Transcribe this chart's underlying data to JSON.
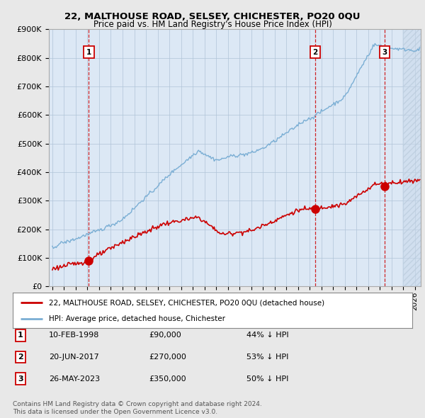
{
  "title": "22, MALTHOUSE ROAD, SELSEY, CHICHESTER, PO20 0QU",
  "subtitle": "Price paid vs. HM Land Registry's House Price Index (HPI)",
  "background_color": "#e8e8e8",
  "plot_background": "#dce8f5",
  "plot_background_hatch": "#c8d8e8",
  "sale_dates_numeric": [
    1998.12,
    2017.47,
    2023.4
  ],
  "sale_prices": [
    90000,
    270000,
    350000
  ],
  "sale_labels": [
    "1",
    "2",
    "3"
  ],
  "legend_entries": [
    "22, MALTHOUSE ROAD, SELSEY, CHICHESTER, PO20 0QU (detached house)",
    "HPI: Average price, detached house, Chichester"
  ],
  "table_rows": [
    [
      "1",
      "10-FEB-1998",
      "£90,000",
      "44% ↓ HPI"
    ],
    [
      "2",
      "20-JUN-2017",
      "£270,000",
      "53% ↓ HPI"
    ],
    [
      "3",
      "26-MAY-2023",
      "£350,000",
      "50% ↓ HPI"
    ]
  ],
  "footer": "Contains HM Land Registry data © Crown copyright and database right 2024.\nThis data is licensed under the Open Government Licence v3.0.",
  "red_line_color": "#cc0000",
  "blue_line_color": "#7aaed4",
  "dashed_line_color": "#cc0000",
  "ylim": [
    0,
    900000
  ],
  "yticks": [
    0,
    100000,
    200000,
    300000,
    400000,
    500000,
    600000,
    700000,
    800000,
    900000
  ],
  "ytick_labels": [
    "£0",
    "£100K",
    "£200K",
    "£300K",
    "£400K",
    "£500K",
    "£600K",
    "£700K",
    "£800K",
    "£900K"
  ],
  "xlim_start": 1994.7,
  "xlim_end": 2026.5,
  "hpi_seed": 42,
  "prop_seed": 123
}
